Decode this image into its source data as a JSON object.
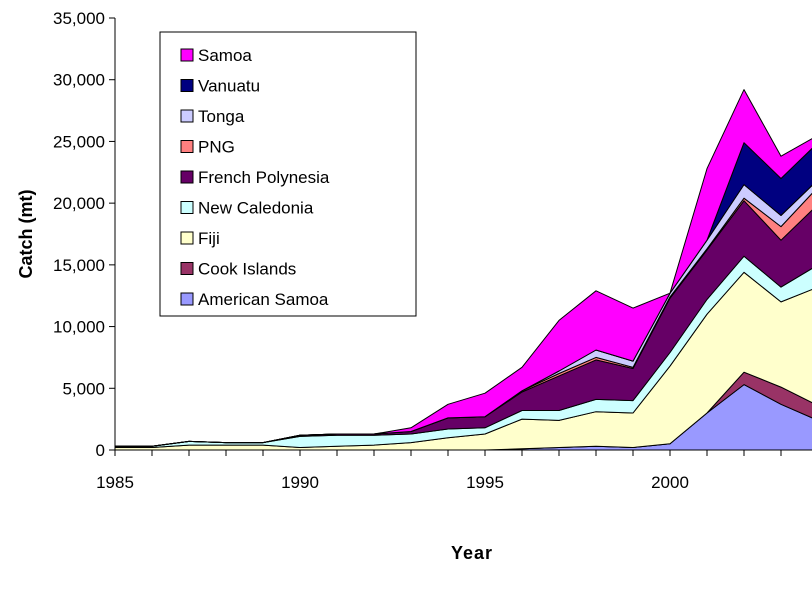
{
  "chart_data": {
    "type": "area",
    "stacked": true,
    "xlabel": "Year",
    "ylabel": "Catch (mt)",
    "x": [
      1985,
      1986,
      1987,
      1988,
      1989,
      1990,
      1991,
      1992,
      1993,
      1994,
      1995,
      1996,
      1997,
      1998,
      1999,
      2000,
      2001,
      2002,
      2003,
      2004
    ],
    "xlim": [
      1985,
      2004
    ],
    "ylim": [
      0,
      35000
    ],
    "x_ticks": [
      {
        "value": 1985,
        "label": "1985"
      },
      {
        "value": 1990,
        "label": "1990"
      },
      {
        "value": 1995,
        "label": "1995"
      },
      {
        "value": 2000,
        "label": "2000"
      }
    ],
    "y_ticks": [
      {
        "value": 0,
        "label": "0"
      },
      {
        "value": 5000,
        "label": "5,000"
      },
      {
        "value": 10000,
        "label": "10,000"
      },
      {
        "value": 15000,
        "label": "15,000"
      },
      {
        "value": 20000,
        "label": "20,000"
      },
      {
        "value": 25000,
        "label": "25,000"
      },
      {
        "value": 30000,
        "label": "30,000"
      },
      {
        "value": 35000,
        "label": "35,000"
      }
    ],
    "legend_position": "top-left",
    "series": [
      {
        "name": "American Samoa",
        "color": "#9999ff",
        "values": [
          0,
          0,
          0,
          0,
          0,
          0,
          0,
          0,
          0,
          0,
          0,
          100,
          200,
          300,
          200,
          500,
          3000,
          5300,
          3700,
          2400
        ]
      },
      {
        "name": "Cook Islands",
        "color": "#993366",
        "values": [
          0,
          0,
          0,
          0,
          0,
          0,
          0,
          0,
          0,
          0,
          0,
          0,
          0,
          0,
          0,
          0,
          0,
          1000,
          1400,
          1200
        ]
      },
      {
        "name": "Fiji",
        "color": "#ffffcc",
        "values": [
          200,
          200,
          400,
          400,
          400,
          200,
          300,
          400,
          600,
          1000,
          1300,
          2400,
          2200,
          2800,
          2800,
          6300,
          8000,
          8100,
          6900,
          9600
        ]
      },
      {
        "name": "New Caledonia",
        "color": "#ccffff",
        "values": [
          100,
          100,
          300,
          200,
          200,
          900,
          900,
          800,
          700,
          700,
          500,
          700,
          800,
          1000,
          1000,
          1100,
          1200,
          1300,
          1200,
          1800
        ]
      },
      {
        "name": "French Polynesia",
        "color": "#660066",
        "values": [
          0,
          0,
          0,
          0,
          0,
          100,
          100,
          100,
          200,
          900,
          900,
          1500,
          2800,
          3200,
          2600,
          4400,
          4000,
          4500,
          3800,
          4900
        ]
      },
      {
        "name": "PNG",
        "color": "#ff8080",
        "values": [
          0,
          0,
          0,
          0,
          0,
          0,
          0,
          0,
          0,
          0,
          0,
          100,
          200,
          200,
          100,
          100,
          100,
          200,
          1100,
          1400
        ]
      },
      {
        "name": "Tonga",
        "color": "#ccccff",
        "values": [
          0,
          0,
          0,
          0,
          0,
          0,
          0,
          0,
          0,
          0,
          0,
          0,
          200,
          600,
          500,
          300,
          700,
          1100,
          900,
          600
        ]
      },
      {
        "name": "Vanuatu",
        "color": "#000080",
        "values": [
          0,
          0,
          0,
          0,
          0,
          0,
          0,
          0,
          0,
          0,
          0,
          0,
          0,
          0,
          0,
          0,
          0,
          3400,
          3000,
          3000
        ]
      },
      {
        "name": "Samoa",
        "color": "#ff00ff",
        "values": [
          0,
          0,
          0,
          0,
          0,
          0,
          0,
          0,
          300,
          1100,
          1900,
          1900,
          4100,
          4800,
          4300,
          0,
          5800,
          4300,
          1800,
          600
        ]
      }
    ]
  }
}
